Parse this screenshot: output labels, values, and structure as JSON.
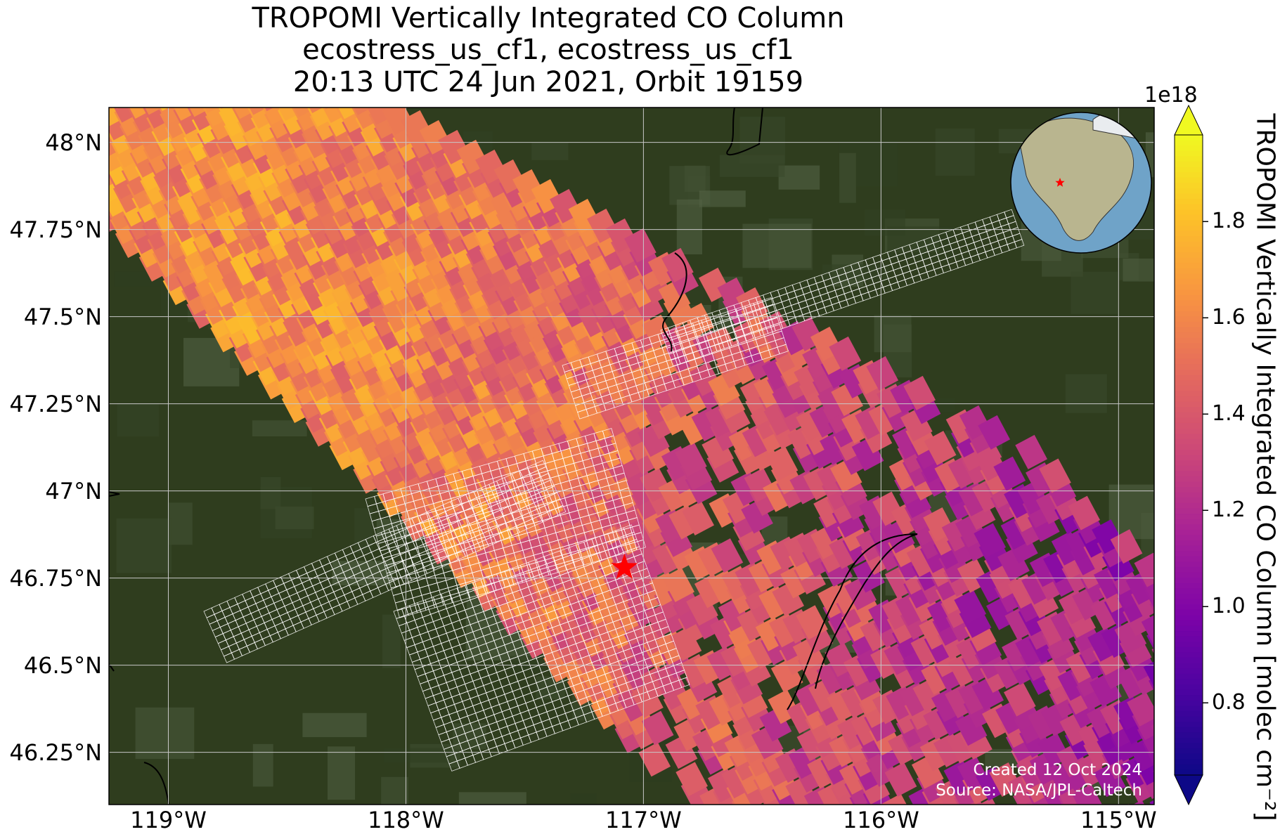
{
  "title": {
    "line1": "TROPOMI Vertically Integrated CO Column",
    "line2": "ecostress_us_cf1, ecostress_us_cf1",
    "line3": "20:13 UTC 24 Jun 2021, Orbit 19159"
  },
  "chart_data": {
    "type": "heatmap",
    "map_type": "satellite CO column map over imagery basemap",
    "xlim": [
      -119.25,
      -114.85
    ],
    "ylim": [
      46.1,
      48.1
    ],
    "x_ticks": [
      {
        "value": -119,
        "label": "119°W"
      },
      {
        "value": -118,
        "label": "118°W"
      },
      {
        "value": -117,
        "label": "117°W"
      },
      {
        "value": -116,
        "label": "116°W"
      },
      {
        "value": -115,
        "label": "115°W"
      }
    ],
    "y_ticks": [
      {
        "value": 48.0,
        "label": "48°N"
      },
      {
        "value": 47.75,
        "label": "47.75°N"
      },
      {
        "value": 47.5,
        "label": "47.5°N"
      },
      {
        "value": 47.25,
        "label": "47.25°N"
      },
      {
        "value": 47.0,
        "label": "47°N"
      },
      {
        "value": 46.75,
        "label": "46.75°N"
      },
      {
        "value": 46.5,
        "label": "46.5°N"
      },
      {
        "value": 46.25,
        "label": "46.25°N"
      }
    ],
    "grid": true,
    "target_marker": {
      "lon": -117.08,
      "lat": 46.78,
      "symbol": "red-star"
    },
    "colorbar": {
      "label": "TROPOMI Vertically Integrated CO Column [molec cm⁻²]",
      "exponent": "1e18",
      "range": [
        0.65,
        1.98
      ],
      "ticks": [
        {
          "value": 0.8,
          "label": "0.8"
        },
        {
          "value": 1.0,
          "label": "1.0"
        },
        {
          "value": 1.2,
          "label": "1.2"
        },
        {
          "value": 1.4,
          "label": "1.4"
        },
        {
          "value": 1.6,
          "label": "1.6"
        },
        {
          "value": 1.8,
          "label": "1.8"
        }
      ],
      "colormap": "plasma",
      "extend": "both"
    },
    "value_field": {
      "description_values": "CO column ×1e18 molec cm⁻²; west of the scene mostly high (≈1.5–1.8), east mostly low (≈0.9–1.3)",
      "west_mean": 1.62,
      "east_mean": 1.12
    },
    "inset_globe": {
      "marker": "red-star",
      "region": "North America"
    }
  },
  "credits": {
    "created": "Created 12 Oct 2024",
    "source": "Source: NASA/JPL-Caltech"
  },
  "colors": {
    "plasma_low": "#0d0887",
    "plasma_high": "#f0f921",
    "grid": "#c8c8c8",
    "star": "#ff0000",
    "footprint": "#ffffff"
  }
}
